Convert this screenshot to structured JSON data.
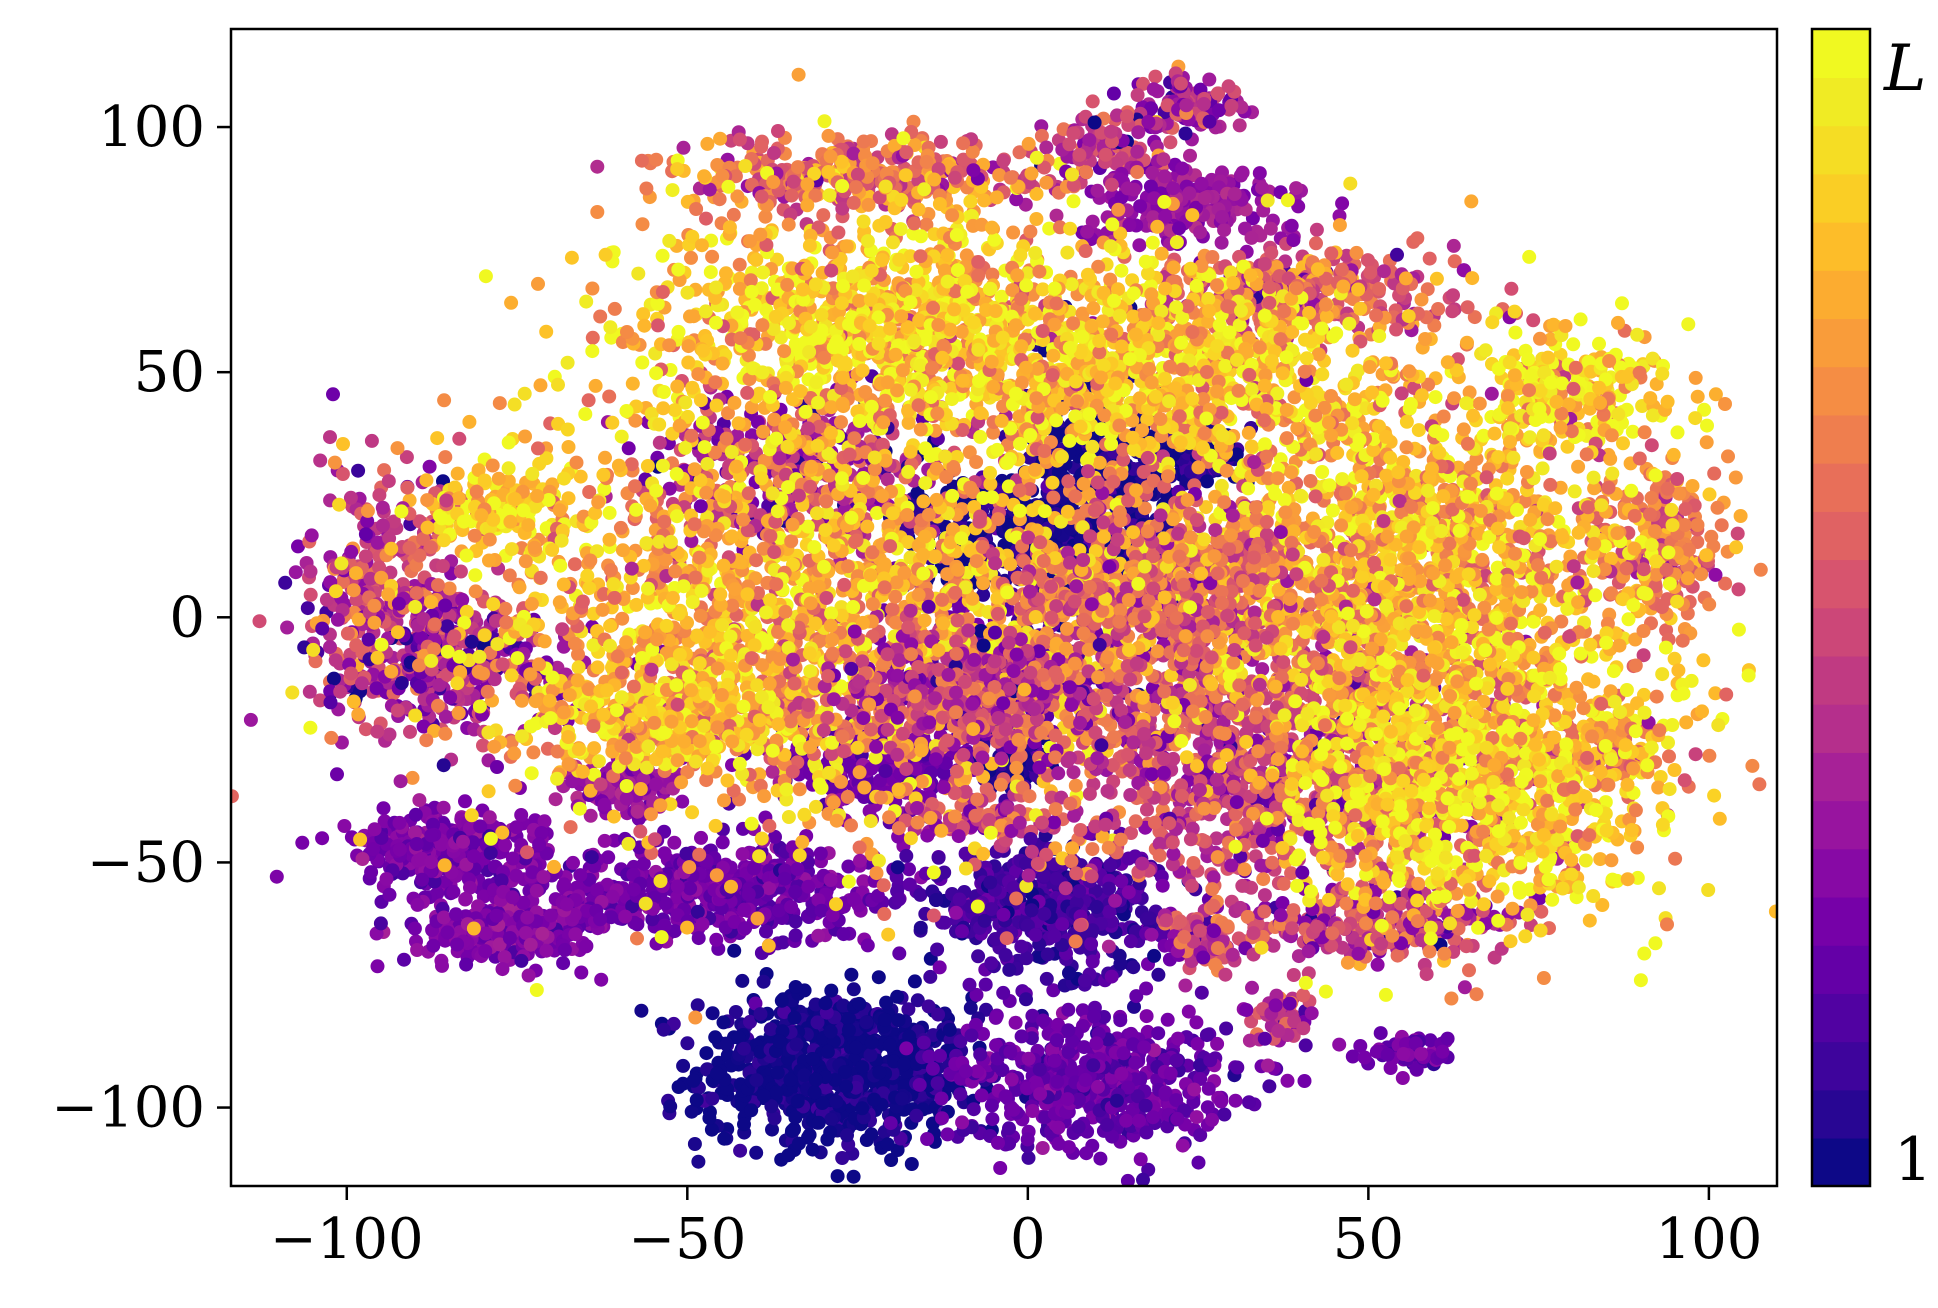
{
  "chart_data": {
    "type": "scatter",
    "title": "",
    "xlabel": "",
    "ylabel": "",
    "xlim": [
      -117,
      110
    ],
    "ylim": [
      -116,
      120
    ],
    "xticks": [
      -100,
      -50,
      0,
      50,
      100
    ],
    "yticks": [
      -100,
      -50,
      0,
      50,
      100
    ],
    "xtick_labels": [
      "−100",
      "−50",
      "0",
      "50",
      "100"
    ],
    "ytick_labels": [
      "−100",
      "−50",
      "0",
      "50",
      "100"
    ],
    "grid": false,
    "colormap": "plasma",
    "colorbar": {
      "min_label": "1",
      "max_label": "L",
      "levels": 24,
      "colors": [
        "#0d0887",
        "#2f0596",
        "#4903a0",
        "#6100a7",
        "#7801a8",
        "#8e0ca4",
        "#a21d9a",
        "#b42e8d",
        "#c33d80",
        "#d24d73",
        "#de5f65",
        "#e87058",
        "#f1834b",
        "#f8963e",
        "#fcaa31",
        "#fdc028",
        "#f9d524",
        "#f0e725",
        "#f0f921"
      ]
    },
    "clusters": [
      {
        "x": -28,
        "y": -92,
        "sx": 10,
        "sy": 8,
        "value": 0.0,
        "n": 850
      },
      {
        "x": 9,
        "y": -94,
        "sx": 11,
        "sy": 7,
        "value": 0.18,
        "n": 550
      },
      {
        "x": -44,
        "y": -56,
        "sx": 13,
        "sy": 5,
        "value": 0.2,
        "n": 520
      },
      {
        "x": 3,
        "y": -59,
        "sx": 9,
        "sy": 6,
        "value": 0.1,
        "n": 480
      },
      {
        "x": -85,
        "y": -47,
        "sx": 7,
        "sy": 4,
        "value": 0.22,
        "n": 300
      },
      {
        "x": -76,
        "y": -63,
        "sx": 7,
        "sy": 4,
        "value": 0.25,
        "n": 300
      },
      {
        "x": -60,
        "y": -35,
        "sx": 4,
        "sy": 3,
        "value": 0.3,
        "n": 120
      },
      {
        "x": -22,
        "y": -30,
        "sx": 9,
        "sy": 4,
        "value": 0.2,
        "n": 250
      },
      {
        "x": -1,
        "y": -30,
        "sx": 2.5,
        "sy": 3,
        "value": 0.05,
        "n": 80
      },
      {
        "x": -7,
        "y": -41,
        "sx": 5,
        "sy": 2,
        "value": 0.45,
        "n": 90
      },
      {
        "x": 25,
        "y": -66,
        "sx": 2.5,
        "sy": 3,
        "value": 0.45,
        "n": 70
      },
      {
        "x": 37,
        "y": -82,
        "sx": 2.5,
        "sy": 3,
        "value": 0.35,
        "n": 60
      },
      {
        "x": 56,
        "y": -89,
        "sx": 3,
        "sy": 2,
        "value": 0.2,
        "n": 60
      },
      {
        "x": 10,
        "y": 25,
        "sx": 6,
        "sy": 12,
        "value": 0.0,
        "n": 460
      },
      {
        "x": -4,
        "y": 17,
        "sx": 8,
        "sy": 6,
        "value": 0.02,
        "n": 240
      },
      {
        "x": 25,
        "y": 33,
        "sx": 4,
        "sy": 3,
        "value": 0.03,
        "n": 90
      },
      {
        "x": -2,
        "y": -10,
        "sx": 7,
        "sy": 6,
        "value": 0.18,
        "n": 220
      },
      {
        "x": -93,
        "y": 5,
        "sx": 7,
        "sy": 12,
        "value": 0.45,
        "n": 320
      },
      {
        "x": -85,
        "y": -10,
        "sx": 9,
        "sy": 7,
        "value": 0.32,
        "n": 280
      },
      {
        "x": 23,
        "y": 104,
        "sx": 4,
        "sy": 3,
        "value": 0.35,
        "n": 110
      },
      {
        "x": 11,
        "y": 96,
        "sx": 5,
        "sy": 3,
        "value": 0.4,
        "n": 100
      },
      {
        "x": 24,
        "y": 84,
        "sx": 8,
        "sy": 4,
        "value": 0.3,
        "n": 220
      },
      {
        "x": -24,
        "y": 90,
        "sx": 14,
        "sy": 4,
        "value": 0.6,
        "n": 350
      },
      {
        "x": 40,
        "y": 67,
        "sx": 12,
        "sy": 4,
        "value": 0.55,
        "n": 350
      },
      {
        "x": 80,
        "y": 47,
        "sx": 8,
        "sy": 6,
        "value": 0.92,
        "n": 220
      },
      {
        "x": 92,
        "y": 15,
        "sx": 5,
        "sy": 8,
        "value": 0.65,
        "n": 200
      },
      {
        "x": 84,
        "y": -28,
        "sx": 6,
        "sy": 5,
        "value": 0.75,
        "n": 150
      },
      {
        "x": 50,
        "y": -63,
        "sx": 12,
        "sy": 4,
        "value": 0.42,
        "n": 240
      },
      {
        "x": -78,
        "y": 22,
        "sx": 6,
        "sy": 4,
        "value": 0.9,
        "n": 150
      },
      {
        "x": -33,
        "y": 30,
        "sx": 11,
        "sy": 8,
        "value": 0.35,
        "n": 340
      },
      {
        "x": -30,
        "y": 0,
        "sx": 28,
        "sy": 22,
        "value": 0.78,
        "n": 2200
      },
      {
        "x": -20,
        "y": 60,
        "sx": 20,
        "sy": 12,
        "value": 0.85,
        "n": 1200
      },
      {
        "x": 35,
        "y": -30,
        "sx": 18,
        "sy": 14,
        "value": 0.45,
        "n": 1200
      },
      {
        "x": 55,
        "y": 10,
        "sx": 18,
        "sy": 20,
        "value": 0.8,
        "n": 1700
      },
      {
        "x": 65,
        "y": -35,
        "sx": 14,
        "sy": 14,
        "value": 0.88,
        "n": 900
      },
      {
        "x": 20,
        "y": 50,
        "sx": 16,
        "sy": 10,
        "value": 0.85,
        "n": 700
      },
      {
        "x": 20,
        "y": 5,
        "sx": 12,
        "sy": 10,
        "value": 0.6,
        "n": 600
      },
      {
        "x": -10,
        "y": -15,
        "sx": 10,
        "sy": 6,
        "value": 0.45,
        "n": 400
      },
      {
        "x": -55,
        "y": -20,
        "sx": 8,
        "sy": 6,
        "value": 0.82,
        "n": 300
      }
    ]
  }
}
